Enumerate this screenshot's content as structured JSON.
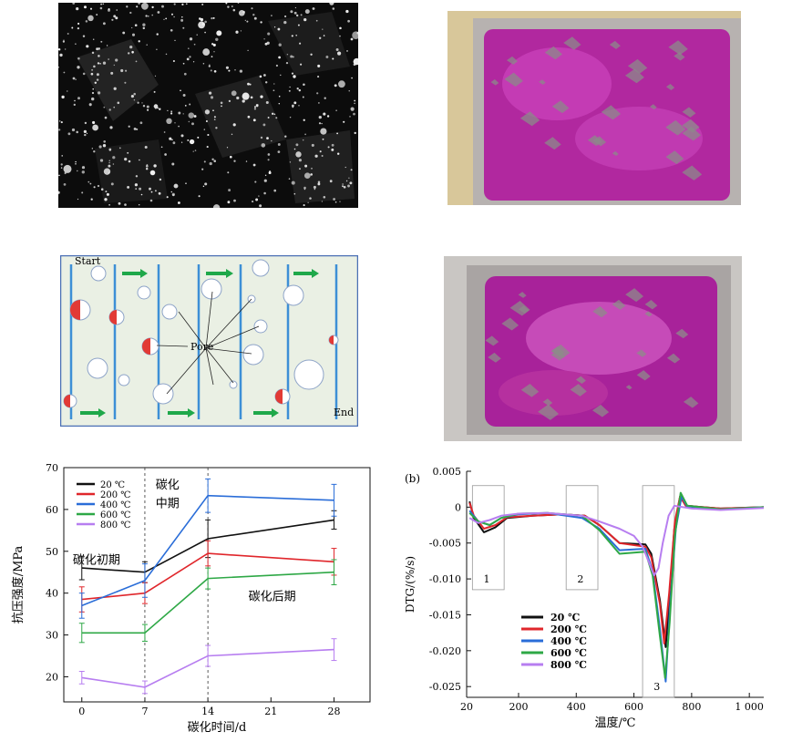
{
  "pore_diagram": {
    "start_label": "Start",
    "end_label": "End",
    "pore_label": "Pore"
  },
  "chart_data": [
    {
      "type": "line",
      "xlabel": "碳化时间/d",
      "ylabel": "抗压强度/MPa",
      "x": [
        0,
        7,
        14,
        28
      ],
      "xticks": [
        0,
        7,
        14,
        21,
        28
      ],
      "yticks": [
        20,
        30,
        40,
        50,
        60,
        70
      ],
      "xlim": [
        -2,
        32
      ],
      "ylim": [
        14,
        70
      ],
      "legend_position": "top-left",
      "annotations": [
        {
          "text": "碳化初期",
          "x": -1,
          "y": 47
        },
        {
          "text": "碳化",
          "x": 8.2,
          "y": 65
        },
        {
          "text": "中期",
          "x": 8.2,
          "y": 60.5
        },
        {
          "text": "碳化后期",
          "x": 18.5,
          "y": 38.3
        }
      ],
      "dividers": [
        7,
        14
      ],
      "series": [
        {
          "name": "20 ℃",
          "color": "#111111",
          "values": [
            46,
            45,
            53,
            57.5
          ],
          "errors": [
            2.8,
            2.5,
            4.5,
            2.2
          ]
        },
        {
          "name": "200 ℃",
          "color": "#e0262b",
          "values": [
            38.5,
            40,
            49.5,
            47.5
          ],
          "errors": [
            3,
            2.5,
            3,
            3.2
          ]
        },
        {
          "name": "400 ℃",
          "color": "#2a6dd8",
          "values": [
            37,
            43,
            63.3,
            62.2
          ],
          "errors": [
            3,
            4,
            4,
            3.8
          ]
        },
        {
          "name": "600 ℃",
          "color": "#2ea846",
          "values": [
            30.5,
            30.5,
            43.5,
            45
          ],
          "errors": [
            2.3,
            2,
            2.5,
            3
          ]
        },
        {
          "name": "800 ℃",
          "color": "#b77ef0",
          "values": [
            19.8,
            17.5,
            25,
            26.5
          ],
          "errors": [
            1.5,
            1.5,
            2.5,
            2.6
          ]
        }
      ]
    },
    {
      "type": "line",
      "panel_label": "(b)",
      "xlabel": "温度/℃",
      "ylabel": "DTG/(%/s)",
      "xticks": [
        20,
        200,
        400,
        600,
        800,
        1000
      ],
      "xtick_labels": [
        "20",
        "200",
        "400",
        "600",
        "800",
        "1 000"
      ],
      "yticks": [
        0.005,
        0,
        -0.005,
        -0.01,
        -0.015,
        -0.02,
        -0.025
      ],
      "ytick_labels": [
        "0.005",
        "0",
        "-0.005",
        "-0.010",
        "-0.015",
        "-0.020",
        "-0.025"
      ],
      "xlim": [
        20,
        1050
      ],
      "ylim": [
        -0.0265,
        0.005
      ],
      "legend_position": "bottom-left",
      "regions": [
        {
          "label": "1",
          "x": [
            40,
            150
          ],
          "y": [
            -0.0115,
            0.003
          ]
        },
        {
          "label": "2",
          "x": [
            365,
            475
          ],
          "y": [
            -0.0115,
            0.003
          ]
        },
        {
          "label": "3",
          "x": [
            630,
            740
          ],
          "y": [
            -0.0265,
            0.003
          ]
        }
      ],
      "series": [
        {
          "name": "20 ℃",
          "color": "#111111",
          "points": [
            [
              30,
              0.0008
            ],
            [
              45,
              -0.0015
            ],
            [
              80,
              -0.0035
            ],
            [
              120,
              -0.0028
            ],
            [
              160,
              -0.0015
            ],
            [
              250,
              -0.0012
            ],
            [
              350,
              -0.001
            ],
            [
              430,
              -0.0012
            ],
            [
              480,
              -0.0025
            ],
            [
              550,
              -0.005
            ],
            [
              640,
              -0.0052
            ],
            [
              660,
              -0.0065
            ],
            [
              690,
              -0.013
            ],
            [
              710,
              -0.0195
            ],
            [
              725,
              -0.012
            ],
            [
              740,
              -0.003
            ],
            [
              760,
              0.0015
            ],
            [
              780,
              0.0002
            ],
            [
              900,
              -0.0002
            ],
            [
              1050,
              0
            ]
          ]
        },
        {
          "name": "200 ℃",
          "color": "#e0262b",
          "points": [
            [
              30,
              0.0006
            ],
            [
              45,
              -0.0012
            ],
            [
              80,
              -0.003
            ],
            [
              120,
              -0.0025
            ],
            [
              160,
              -0.0014
            ],
            [
              250,
              -0.0012
            ],
            [
              350,
              -0.001
            ],
            [
              430,
              -0.0012
            ],
            [
              480,
              -0.0025
            ],
            [
              550,
              -0.005
            ],
            [
              640,
              -0.0055
            ],
            [
              660,
              -0.007
            ],
            [
              690,
              -0.0135
            ],
            [
              705,
              -0.019
            ],
            [
              722,
              -0.012
            ],
            [
              742,
              -0.002
            ],
            [
              760,
              0.0015
            ],
            [
              780,
              0.0002
            ],
            [
              900,
              -0.0002
            ],
            [
              1050,
              0
            ]
          ]
        },
        {
          "name": "400 ℃",
          "color": "#2a6dd8",
          "points": [
            [
              30,
              -0.0005
            ],
            [
              60,
              -0.002
            ],
            [
              100,
              -0.0025
            ],
            [
              140,
              -0.0015
            ],
            [
              200,
              -0.001
            ],
            [
              300,
              -0.0008
            ],
            [
              420,
              -0.0015
            ],
            [
              480,
              -0.003
            ],
            [
              550,
              -0.006
            ],
            [
              640,
              -0.0058
            ],
            [
              665,
              -0.009
            ],
            [
              690,
              -0.017
            ],
            [
              710,
              -0.0243
            ],
            [
              725,
              -0.014
            ],
            [
              745,
              -0.003
            ],
            [
              765,
              0.0015
            ],
            [
              785,
              0.0001
            ],
            [
              900,
              -0.0003
            ],
            [
              1050,
              0
            ]
          ]
        },
        {
          "name": "600 ℃",
          "color": "#2ea846",
          "points": [
            [
              30,
              -0.0008
            ],
            [
              60,
              -0.002
            ],
            [
              100,
              -0.0025
            ],
            [
              140,
              -0.0015
            ],
            [
              200,
              -0.0009
            ],
            [
              300,
              -0.0008
            ],
            [
              420,
              -0.0012
            ],
            [
              480,
              -0.0032
            ],
            [
              550,
              -0.0065
            ],
            [
              640,
              -0.0062
            ],
            [
              665,
              -0.0095
            ],
            [
              690,
              -0.018
            ],
            [
              708,
              -0.0238
            ],
            [
              724,
              -0.016
            ],
            [
              742,
              -0.004
            ],
            [
              762,
              0.002
            ],
            [
              785,
              0.0002
            ],
            [
              900,
              -0.0003
            ],
            [
              1050,
              0
            ]
          ]
        },
        {
          "name": "800 ℃",
          "color": "#b77ef0",
          "points": [
            [
              30,
              -0.0015
            ],
            [
              60,
              -0.0022
            ],
            [
              100,
              -0.0018
            ],
            [
              140,
              -0.0012
            ],
            [
              200,
              -0.0009
            ],
            [
              300,
              -0.0008
            ],
            [
              420,
              -0.0012
            ],
            [
              480,
              -0.002
            ],
            [
              550,
              -0.003
            ],
            [
              600,
              -0.004
            ],
            [
              630,
              -0.0055
            ],
            [
              655,
              -0.008
            ],
            [
              670,
              -0.0095
            ],
            [
              685,
              -0.0085
            ],
            [
              700,
              -0.005
            ],
            [
              720,
              -0.0012
            ],
            [
              740,
              0.0002
            ],
            [
              800,
              -0.0002
            ],
            [
              900,
              -0.0004
            ],
            [
              1050,
              -0.0001
            ]
          ]
        }
      ]
    }
  ]
}
